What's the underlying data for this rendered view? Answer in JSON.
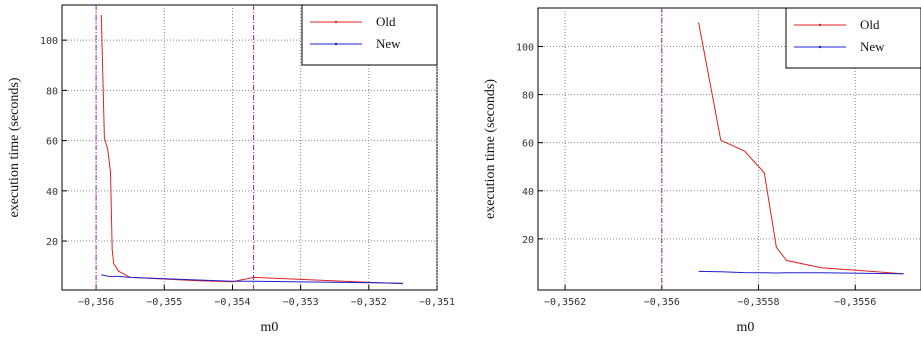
{
  "chart_data": [
    {
      "type": "line",
      "xlabel": "m0",
      "ylabel": "execution time (seconds)",
      "xlim": [
        -0.3565,
        -0.351
      ],
      "ylim": [
        0.5,
        114
      ],
      "xticks": [
        {
          "value": -0.356,
          "label": "−0,356"
        },
        {
          "value": -0.355,
          "label": "−0,355"
        },
        {
          "value": -0.354,
          "label": "−0,354"
        },
        {
          "value": -0.353,
          "label": "−0,353"
        },
        {
          "value": -0.352,
          "label": "−0,352"
        },
        {
          "value": -0.351,
          "label": "−0,351"
        }
      ],
      "yticks": [
        20,
        40,
        60,
        80,
        100
      ],
      "grid": true,
      "legend": "upper right",
      "vlines": [
        -0.356,
        -0.35369
      ],
      "vline_color": "#a020a0",
      "series": [
        {
          "name": "Old",
          "color": "#e02020",
          "x": [
            -0.355924,
            -0.355878,
            -0.355829,
            -0.355788,
            -0.355763,
            -0.355742,
            -0.35567,
            -0.3555,
            -0.3545,
            -0.354,
            -0.35369,
            -0.3515
          ],
          "values": [
            110,
            61,
            56.5,
            47.5,
            16.5,
            11,
            8,
            5.5,
            4.2,
            3.8,
            5.5,
            3
          ]
        },
        {
          "name": "New",
          "color": "#2020d0",
          "x": [
            -0.355924,
            -0.355878,
            -0.355829,
            -0.355788,
            -0.355763,
            -0.355742,
            -0.35567,
            -0.3555,
            -0.3545,
            -0.354,
            -0.35369,
            -0.3515
          ],
          "values": [
            6.5,
            6.3,
            6,
            5.9,
            5.8,
            5.9,
            5.9,
            5.5,
            4.5,
            4,
            4,
            3.2
          ]
        }
      ]
    },
    {
      "type": "line",
      "xlabel": "m0",
      "ylabel": "execution time (seconds)",
      "xlim": [
        -0.356256,
        -0.355464
      ],
      "ylim": [
        -1.25,
        116
      ],
      "xticks": [
        {
          "value": -0.3562,
          "label": "−0,3562"
        },
        {
          "value": -0.356,
          "label": "−0,356"
        },
        {
          "value": -0.3558,
          "label": "−0,3558"
        },
        {
          "value": -0.3556,
          "label": "−0,3556"
        }
      ],
      "yticks": [
        20,
        40,
        60,
        80,
        100
      ],
      "grid": true,
      "legend": "upper right",
      "vlines": [
        -0.356
      ],
      "vline_color": "#a020a0",
      "series": [
        {
          "name": "Old",
          "color": "#e02020",
          "x": [
            -0.355924,
            -0.355878,
            -0.355829,
            -0.355788,
            -0.355763,
            -0.355742,
            -0.35567,
            -0.3555
          ],
          "values": [
            110,
            61,
            56.5,
            47.5,
            16.5,
            11,
            8,
            5.5
          ]
        },
        {
          "name": "New",
          "color": "#2020d0",
          "x": [
            -0.355924,
            -0.355878,
            -0.355829,
            -0.355788,
            -0.355763,
            -0.355742,
            -0.35567,
            -0.3555
          ],
          "values": [
            6.5,
            6.3,
            6,
            5.9,
            5.8,
            5.9,
            5.9,
            5.5
          ]
        }
      ]
    }
  ]
}
